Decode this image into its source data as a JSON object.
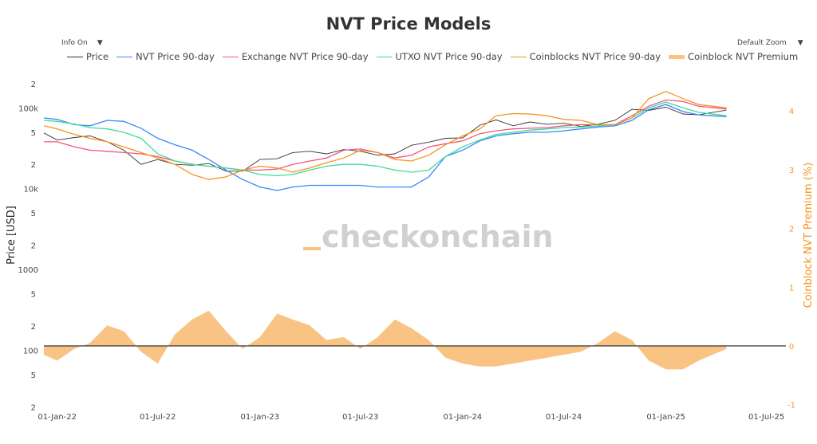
{
  "title": "NVT Price Models",
  "controls": {
    "info": "Info On",
    "zoom": "Default Zoom",
    "dropdown_icon": "triangle-down"
  },
  "watermark": "checkonchain",
  "colors": {
    "Price": "#333333",
    "NVT": "#3a86ff",
    "Exchange": "#f2557a",
    "UTXO": "#3ddc97",
    "Coinblocks": "#f7931a",
    "Premium": "#f9c384"
  },
  "chart_data": {
    "type": "line",
    "title": "NVT Price Models",
    "ylabel": "Price [USD]",
    "y2label": "Coinblock NVT Premium (%)",
    "yscale": "log",
    "ylim": [
      18,
      250000
    ],
    "y2lim": [
      -1.1,
      4.6
    ],
    "y_ticks": [
      {
        "v": 200000,
        "t": "2"
      },
      {
        "v": 100000,
        "t": "100k"
      },
      {
        "v": 50000,
        "t": "5"
      },
      {
        "v": 20000,
        "t": "2"
      },
      {
        "v": 10000,
        "t": "10k"
      },
      {
        "v": 5000,
        "t": "5"
      },
      {
        "v": 2000,
        "t": "2"
      },
      {
        "v": 1000,
        "t": "1000"
      },
      {
        "v": 500,
        "t": "5"
      },
      {
        "v": 200,
        "t": "2"
      },
      {
        "v": 100,
        "t": "100"
      },
      {
        "v": 50,
        "t": "5"
      },
      {
        "v": 20,
        "t": "2"
      }
    ],
    "y2_ticks": [
      4,
      3,
      2,
      1,
      0,
      -1
    ],
    "x_ticks": [
      {
        "d": "2022-01-01",
        "t": "01-Jan-22"
      },
      {
        "d": "2022-07-01",
        "t": "01-Jul-22"
      },
      {
        "d": "2023-01-01",
        "t": "01-Jan-23"
      },
      {
        "d": "2023-07-01",
        "t": "01-Jul-23"
      },
      {
        "d": "2024-01-01",
        "t": "01-Jan-24"
      },
      {
        "d": "2024-07-01",
        "t": "01-Jul-24"
      },
      {
        "d": "2025-01-01",
        "t": "01-Jan-25"
      },
      {
        "d": "2025-07-01",
        "t": "01-Jul-25"
      }
    ],
    "xlim": [
      "2021-12-08",
      "2025-08-05"
    ],
    "grid": false,
    "legend": "top",
    "x": [
      "2021-12-08",
      "2022-01-01",
      "2022-02-01",
      "2022-03-01",
      "2022-04-01",
      "2022-05-01",
      "2022-06-01",
      "2022-07-01",
      "2022-08-01",
      "2022-09-01",
      "2022-10-01",
      "2022-11-01",
      "2022-12-01",
      "2023-01-01",
      "2023-02-01",
      "2023-03-01",
      "2023-04-01",
      "2023-05-01",
      "2023-06-01",
      "2023-07-01",
      "2023-08-01",
      "2023-09-01",
      "2023-10-01",
      "2023-11-01",
      "2023-12-01",
      "2024-01-01",
      "2024-02-01",
      "2024-03-01",
      "2024-04-01",
      "2024-05-01",
      "2024-06-01",
      "2024-07-01",
      "2024-08-01",
      "2024-09-01",
      "2024-10-01",
      "2024-11-01",
      "2024-12-01",
      "2025-01-01",
      "2025-02-01",
      "2025-03-01",
      "2025-04-20"
    ],
    "series": [
      {
        "name": "Price",
        "key": "Price",
        "axis": "y",
        "values": [
          49000,
          40000,
          43000,
          45000,
          38000,
          30000,
          20000,
          23000,
          20000,
          19500,
          20500,
          16500,
          16500,
          23000,
          23500,
          28000,
          29000,
          27000,
          30500,
          29000,
          26000,
          27000,
          34500,
          37700,
          42000,
          42500,
          61000,
          71000,
          60000,
          67000,
          62700,
          64600,
          59000,
          63000,
          70000,
          96000,
          93000,
          102000,
          84000,
          82000,
          94000
        ]
      },
      {
        "name": "NVT Price 90-day",
        "key": "NVT",
        "axis": "y",
        "values": [
          75000,
          72000,
          62000,
          60000,
          70000,
          68000,
          56000,
          42000,
          35000,
          30000,
          23000,
          17000,
          13000,
          10500,
          9500,
          10500,
          11000,
          11000,
          11000,
          11000,
          10500,
          10500,
          10500,
          14000,
          25000,
          30000,
          39000,
          45000,
          48000,
          50000,
          50000,
          52000,
          55000,
          58000,
          60000,
          70000,
          95000,
          110000,
          90000,
          82000,
          78000
        ]
      },
      {
        "name": "Exchange NVT Price 90-day",
        "key": "Exchange",
        "axis": "y",
        "values": [
          38000,
          38000,
          33000,
          30000,
          29000,
          28000,
          27000,
          25000,
          22000,
          20000,
          19000,
          18000,
          17000,
          17000,
          17500,
          20000,
          22000,
          24000,
          30000,
          31000,
          28000,
          24000,
          26000,
          33000,
          36000,
          39000,
          48000,
          52000,
          55000,
          56000,
          57000,
          60000,
          62000,
          62000,
          62000,
          80000,
          105000,
          125000,
          120000,
          105000,
          97000
        ]
      },
      {
        "name": "UTXO NVT Price 90-day",
        "key": "UTXO",
        "axis": "y",
        "values": [
          70000,
          68000,
          63000,
          57000,
          55000,
          50000,
          42000,
          27000,
          22000,
          20000,
          19000,
          18000,
          17000,
          15000,
          14500,
          15000,
          17000,
          19000,
          20000,
          20000,
          19000,
          17000,
          16000,
          17000,
          25000,
          33000,
          40000,
          47000,
          50000,
          53000,
          55000,
          57000,
          58000,
          60000,
          62000,
          75000,
          100000,
          118000,
          100000,
          88000,
          80000
        ]
      },
      {
        "name": "Coinblocks NVT Price 90-day",
        "key": "Coinblocks",
        "axis": "y",
        "values": [
          60000,
          55000,
          47000,
          42000,
          38000,
          33000,
          28000,
          24000,
          20000,
          15000,
          13000,
          14000,
          17000,
          19000,
          18000,
          16000,
          18000,
          21000,
          24000,
          30000,
          28000,
          23000,
          22000,
          26000,
          35000,
          45000,
          55000,
          80000,
          85000,
          84000,
          80000,
          72000,
          70000,
          62000,
          62000,
          75000,
          130000,
          160000,
          130000,
          110000,
          100000
        ]
      },
      {
        "name": "Coinblock NVT Premium",
        "key": "Premium",
        "axis": "y2",
        "type": "area",
        "values": [
          -0.15,
          -0.25,
          -0.05,
          0.05,
          0.35,
          0.25,
          -0.1,
          -0.3,
          0.2,
          0.45,
          0.6,
          0.25,
          -0.05,
          0.15,
          0.55,
          0.45,
          0.35,
          0.1,
          0.15,
          -0.05,
          0.15,
          0.45,
          0.3,
          0.1,
          -0.2,
          -0.3,
          -0.35,
          -0.35,
          -0.3,
          -0.25,
          -0.2,
          -0.15,
          -0.1,
          0.05,
          0.25,
          0.1,
          -0.25,
          -0.4,
          -0.4,
          -0.25,
          -0.05
        ]
      }
    ]
  }
}
